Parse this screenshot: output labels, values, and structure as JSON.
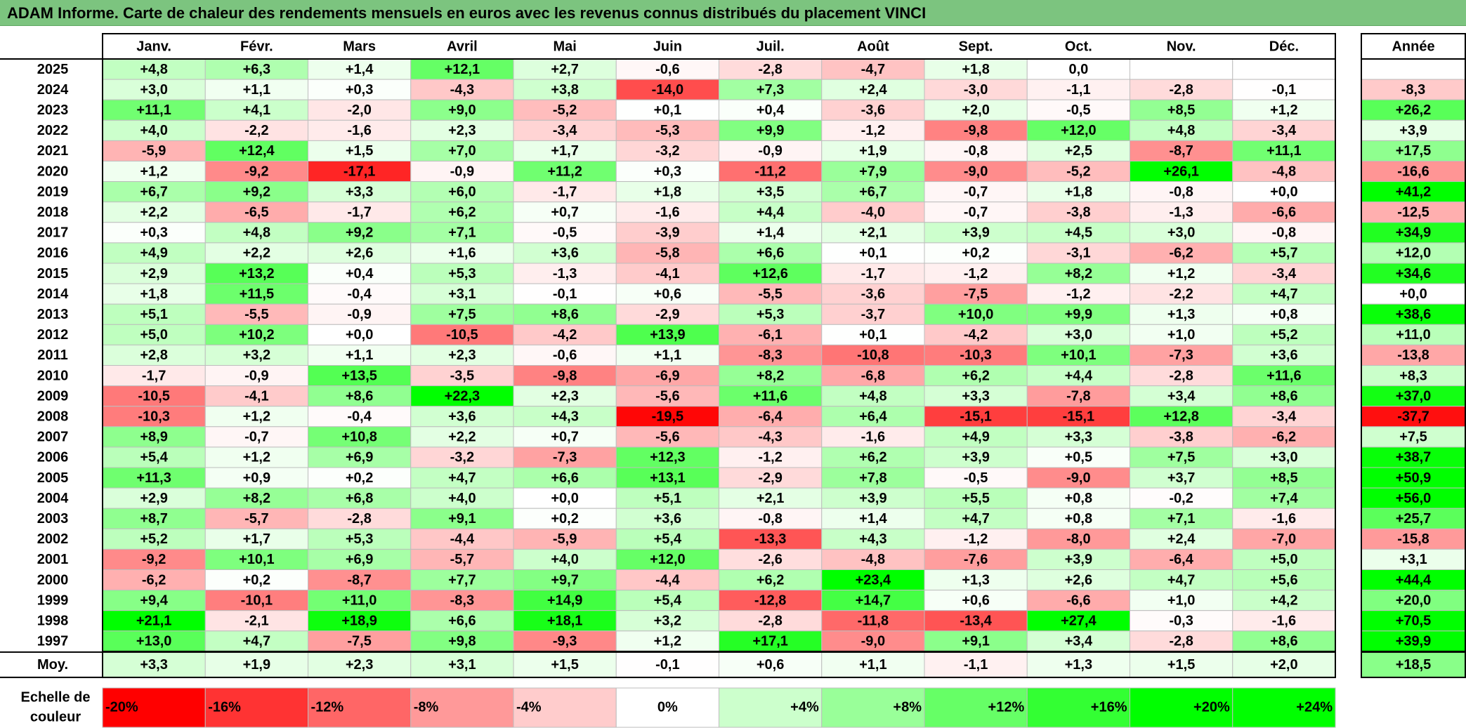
{
  "title": "ADAM Informe. Carte de chaleur des rendements mensuels en euros avec les revenus connus distribués du placement VINCI",
  "chart_data": {
    "type": "heatmap",
    "title": "ADAM Informe. Carte de chaleur des rendements mensuels en euros avec les revenus connus distribués du placement VINCI",
    "months": [
      "Janv.",
      "Févr.",
      "Mars",
      "Avril",
      "Mai",
      "Juin",
      "Juil.",
      "Août",
      "Sept.",
      "Oct.",
      "Nov.",
      "Déc."
    ],
    "year_col_label": "Année",
    "avg_label": "Moy.",
    "rows": [
      {
        "year": "2025",
        "values": [
          "+4,8",
          "+6,3",
          "+1,4",
          "+12,1",
          "+2,7",
          "-0,6",
          "-2,8",
          "-4,7",
          "+1,8",
          "0,0",
          "",
          ""
        ],
        "annual": ""
      },
      {
        "year": "2024",
        "values": [
          "+3,0",
          "+1,1",
          "+0,3",
          "-4,3",
          "+3,8",
          "-14,0",
          "+7,3",
          "+2,4",
          "-3,0",
          "-1,1",
          "-2,8",
          "-0,1"
        ],
        "annual": "-8,3"
      },
      {
        "year": "2023",
        "values": [
          "+11,1",
          "+4,1",
          "-2,0",
          "+9,0",
          "-5,2",
          "+0,1",
          "+0,4",
          "-3,6",
          "+2,0",
          "-0,5",
          "+8,5",
          "+1,2"
        ],
        "annual": "+26,2"
      },
      {
        "year": "2022",
        "values": [
          "+4,0",
          "-2,2",
          "-1,6",
          "+2,3",
          "-3,4",
          "-5,3",
          "+9,9",
          "-1,2",
          "-9,8",
          "+12,0",
          "+4,8",
          "-3,4"
        ],
        "annual": "+3,9"
      },
      {
        "year": "2021",
        "values": [
          "-5,9",
          "+12,4",
          "+1,5",
          "+7,0",
          "+1,7",
          "-3,2",
          "-0,9",
          "+1,9",
          "-0,8",
          "+2,5",
          "-8,7",
          "+11,1"
        ],
        "annual": "+17,5"
      },
      {
        "year": "2020",
        "values": [
          "+1,2",
          "-9,2",
          "-17,1",
          "-0,9",
          "+11,2",
          "+0,3",
          "-11,2",
          "+7,9",
          "-9,0",
          "-5,2",
          "+26,1",
          "-4,8"
        ],
        "annual": "-16,6"
      },
      {
        "year": "2019",
        "values": [
          "+6,7",
          "+9,2",
          "+3,3",
          "+6,0",
          "-1,7",
          "+1,8",
          "+3,5",
          "+6,7",
          "-0,7",
          "+1,8",
          "-0,8",
          "+0,0"
        ],
        "annual": "+41,2"
      },
      {
        "year": "2018",
        "values": [
          "+2,2",
          "-6,5",
          "-1,7",
          "+6,2",
          "+0,7",
          "-1,6",
          "+4,4",
          "-4,0",
          "-0,7",
          "-3,8",
          "-1,3",
          "-6,6"
        ],
        "annual": "-12,5"
      },
      {
        "year": "2017",
        "values": [
          "+0,3",
          "+4,8",
          "+9,2",
          "+7,1",
          "-0,5",
          "-3,9",
          "+1,4",
          "+2,1",
          "+3,9",
          "+4,5",
          "+3,0",
          "-0,8"
        ],
        "annual": "+34,9"
      },
      {
        "year": "2016",
        "values": [
          "+4,9",
          "+2,2",
          "+2,6",
          "+1,6",
          "+3,6",
          "-5,8",
          "+6,6",
          "+0,1",
          "+0,2",
          "-3,1",
          "-6,2",
          "+5,7"
        ],
        "annual": "+12,0"
      },
      {
        "year": "2015",
        "values": [
          "+2,9",
          "+13,2",
          "+0,4",
          "+5,3",
          "-1,3",
          "-4,1",
          "+12,6",
          "-1,7",
          "-1,2",
          "+8,2",
          "+1,2",
          "-3,4"
        ],
        "annual": "+34,6"
      },
      {
        "year": "2014",
        "values": [
          "+1,8",
          "+11,5",
          "-0,4",
          "+3,1",
          "-0,1",
          "+0,6",
          "-5,5",
          "-3,6",
          "-7,5",
          "-1,2",
          "-2,2",
          "+4,7"
        ],
        "annual": "+0,0"
      },
      {
        "year": "2013",
        "values": [
          "+5,1",
          "-5,5",
          "-0,9",
          "+7,5",
          "+8,6",
          "-2,9",
          "+5,3",
          "-3,7",
          "+10,0",
          "+9,9",
          "+1,3",
          "+0,8"
        ],
        "annual": "+38,6"
      },
      {
        "year": "2012",
        "values": [
          "+5,0",
          "+10,2",
          "+0,0",
          "-10,5",
          "-4,2",
          "+13,9",
          "-6,1",
          "+0,1",
          "-4,2",
          "+3,0",
          "+1,0",
          "+5,2"
        ],
        "annual": "+11,0"
      },
      {
        "year": "2011",
        "values": [
          "+2,8",
          "+3,2",
          "+1,1",
          "+2,3",
          "-0,6",
          "+1,1",
          "-8,3",
          "-10,8",
          "-10,3",
          "+10,1",
          "-7,3",
          "+3,6"
        ],
        "annual": "-13,8"
      },
      {
        "year": "2010",
        "values": [
          "-1,7",
          "-0,9",
          "+13,5",
          "-3,5",
          "-9,8",
          "-6,9",
          "+8,2",
          "-6,8",
          "+6,2",
          "+4,4",
          "-2,8",
          "+11,6"
        ],
        "annual": "+8,3"
      },
      {
        "year": "2009",
        "values": [
          "-10,5",
          "-4,1",
          "+8,6",
          "+22,3",
          "+2,3",
          "-5,6",
          "+11,6",
          "+4,8",
          "+3,3",
          "-7,8",
          "+3,4",
          "+8,6"
        ],
        "annual": "+37,0"
      },
      {
        "year": "2008",
        "values": [
          "-10,3",
          "+1,2",
          "-0,4",
          "+3,6",
          "+4,3",
          "-19,5",
          "-6,4",
          "+6,4",
          "-15,1",
          "-15,1",
          "+12,8",
          "-3,4"
        ],
        "annual": "-37,7"
      },
      {
        "year": "2007",
        "values": [
          "+8,9",
          "-0,7",
          "+10,8",
          "+2,2",
          "+0,7",
          "-5,6",
          "-4,3",
          "-1,6",
          "+4,9",
          "+3,3",
          "-3,8",
          "-6,2"
        ],
        "annual": "+7,5"
      },
      {
        "year": "2006",
        "values": [
          "+5,4",
          "+1,2",
          "+6,9",
          "-3,2",
          "-7,3",
          "+12,3",
          "-1,2",
          "+6,2",
          "+3,9",
          "+0,5",
          "+7,5",
          "+3,0"
        ],
        "annual": "+38,7"
      },
      {
        "year": "2005",
        "values": [
          "+11,3",
          "+0,9",
          "+0,2",
          "+4,7",
          "+6,6",
          "+13,1",
          "-2,9",
          "+7,8",
          "-0,5",
          "-9,0",
          "+3,7",
          "+8,5"
        ],
        "annual": "+50,9"
      },
      {
        "year": "2004",
        "values": [
          "+2,9",
          "+8,2",
          "+6,8",
          "+4,0",
          "+0,0",
          "+5,1",
          "+2,1",
          "+3,9",
          "+5,5",
          "+0,8",
          "-0,2",
          "+7,4"
        ],
        "annual": "+56,0"
      },
      {
        "year": "2003",
        "values": [
          "+8,7",
          "-5,7",
          "-2,8",
          "+9,1",
          "+0,2",
          "+3,6",
          "-0,8",
          "+1,4",
          "+4,7",
          "+0,8",
          "+7,1",
          "-1,6"
        ],
        "annual": "+25,7"
      },
      {
        "year": "2002",
        "values": [
          "+5,2",
          "+1,7",
          "+5,3",
          "-4,4",
          "-5,9",
          "+5,4",
          "-13,3",
          "+4,3",
          "-1,2",
          "-8,0",
          "+2,4",
          "-7,0"
        ],
        "annual": "-15,8"
      },
      {
        "year": "2001",
        "values": [
          "-9,2",
          "+10,1",
          "+6,9",
          "-5,7",
          "+4,0",
          "+12,0",
          "-2,6",
          "-4,8",
          "-7,6",
          "+3,9",
          "-6,4",
          "+5,0"
        ],
        "annual": "+3,1"
      },
      {
        "year": "2000",
        "values": [
          "-6,2",
          "+0,2",
          "-8,7",
          "+7,7",
          "+9,7",
          "-4,4",
          "+6,2",
          "+23,4",
          "+1,3",
          "+2,6",
          "+4,7",
          "+5,6"
        ],
        "annual": "+44,4"
      },
      {
        "year": "1999",
        "values": [
          "+9,4",
          "-10,1",
          "+11,0",
          "-8,3",
          "+14,9",
          "+5,4",
          "-12,8",
          "+14,7",
          "+0,6",
          "-6,6",
          "+1,0",
          "+4,2"
        ],
        "annual": "+20,0"
      },
      {
        "year": "1998",
        "values": [
          "+21,1",
          "-2,1",
          "+18,9",
          "+6,6",
          "+18,1",
          "+3,2",
          "-2,8",
          "-11,8",
          "-13,4",
          "+27,4",
          "-0,3",
          "-1,6"
        ],
        "annual": "+70,5"
      },
      {
        "year": "1997",
        "values": [
          "+13,0",
          "+4,7",
          "-7,5",
          "+9,8",
          "-9,3",
          "+1,2",
          "+17,1",
          "-9,0",
          "+9,1",
          "+3,4",
          "-2,8",
          "+8,6"
        ],
        "annual": "+39,9"
      }
    ],
    "averages": [
      "+3,3",
      "+1,9",
      "+2,3",
      "+3,1",
      "+1,5",
      "-0,1",
      "+0,6",
      "+1,1",
      "-1,1",
      "+1,3",
      "+1,5",
      "+2,0"
    ],
    "average_annual": "+18,5",
    "scale_label": "Echelle de couleur",
    "scale": [
      "-20%",
      "-16%",
      "-12%",
      "-8%",
      "-4%",
      "0%",
      "+4%",
      "+8%",
      "+12%",
      "+16%",
      "+20%",
      "+24%"
    ],
    "colors": {
      "negative": "#ff0000",
      "zero": "#ffffff",
      "positive": "#00ff00",
      "title_bar": "#7cc47f"
    }
  }
}
